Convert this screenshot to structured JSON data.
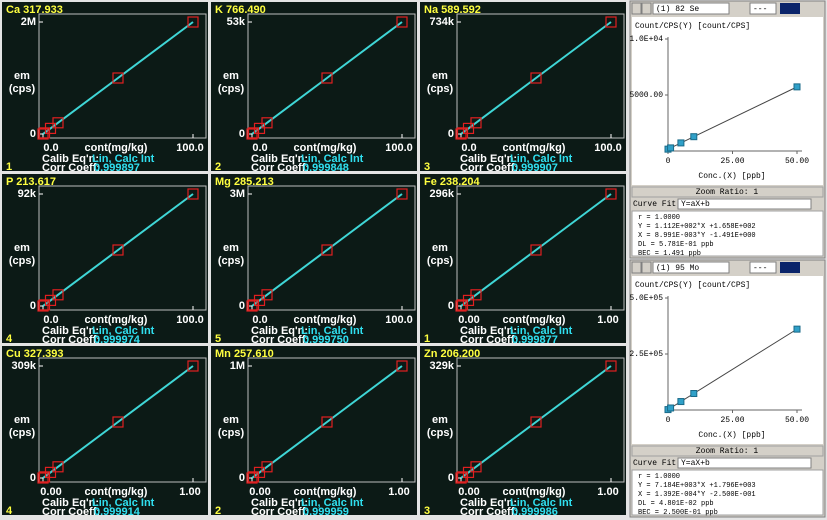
{
  "panels": [
    {
      "title": "Ca 317.933",
      "number": 1,
      "y_labels": [
        "em",
        "(cps)"
      ],
      "x_label": "cont(mg/kg)",
      "eqn_label": "Calib Eq'n:",
      "eqn": "Lin, Calc Int",
      "coeff_label": "Corr Coeff:",
      "coeff": "0.999897",
      "xlim": [
        0,
        100
      ],
      "xticks": [
        {
          "value": 0,
          "label": "0.0"
        },
        {
          "value": 100,
          "label": "100.0"
        }
      ],
      "ylim": [
        0,
        2000000
      ],
      "yticks": [
        0,
        {
          "value": 2000000,
          "label": "2M"
        }
      ],
      "x": [
        0,
        1,
        5,
        10,
        50,
        100
      ],
      "y": [
        0,
        20000,
        100000,
        200000,
        1000000,
        2000000
      ]
    },
    {
      "title": "K 766.490",
      "number": 2,
      "y_labels": [
        "em",
        "(cps)"
      ],
      "x_label": "cont(mg/kg)",
      "eqn_label": "Calib Eq'n:",
      "eqn": "Lin, Calc Int",
      "coeff_label": "Corr Coeff:",
      "coeff": "0.999848",
      "xlim": [
        0,
        100
      ],
      "xticks": [
        {
          "value": 0,
          "label": "0.0"
        },
        {
          "value": 100,
          "label": "100.0"
        }
      ],
      "ylim": [
        0,
        53000
      ],
      "yticks": [
        0,
        {
          "value": 53000,
          "label": "53k"
        }
      ],
      "x": [
        0,
        1,
        5,
        10,
        50,
        100
      ],
      "y": [
        0,
        530,
        2650,
        5300,
        26500,
        53000
      ]
    },
    {
      "title": "Na 589.592",
      "number": 3,
      "y_labels": [
        "em",
        "(cps)"
      ],
      "x_label": "cont(mg/kg)",
      "eqn_label": "Calib Eq'n:",
      "eqn": "Lin, Calc Int",
      "coeff_label": "Corr Coeff:",
      "coeff": "0.999907",
      "xlim": [
        0,
        100
      ],
      "xticks": [
        {
          "value": 0,
          "label": "0.0"
        },
        {
          "value": 100,
          "label": "100.0"
        }
      ],
      "ylim": [
        0,
        734000
      ],
      "yticks": [
        0,
        {
          "value": 734000,
          "label": "734k"
        }
      ],
      "x": [
        0,
        1,
        5,
        10,
        50,
        100
      ],
      "y": [
        0,
        7340,
        36700,
        73400,
        367000,
        734000
      ]
    },
    {
      "title": "P 213.617",
      "number": 4,
      "y_labels": [
        "em",
        "(cps)"
      ],
      "x_label": "cont(mg/kg)",
      "eqn_label": "Calib Eq'n:",
      "eqn": "Lin, Calc Int",
      "coeff_label": "Corr Coeff:",
      "coeff": "0.999974",
      "xlim": [
        0,
        100
      ],
      "xticks": [
        {
          "value": 0,
          "label": "0.0"
        },
        {
          "value": 100,
          "label": "100.0"
        }
      ],
      "ylim": [
        0,
        92000
      ],
      "yticks": [
        0,
        {
          "value": 92000,
          "label": "92k"
        }
      ],
      "x": [
        0,
        1,
        5,
        10,
        50,
        100
      ],
      "y": [
        0,
        920,
        4600,
        9200,
        46000,
        92000
      ]
    },
    {
      "title": "Mg 285.213",
      "number": 5,
      "y_labels": [
        "em",
        "(cps)"
      ],
      "x_label": "cont(mg/kg)",
      "eqn_label": "Calib Eq'n:",
      "eqn": "Lin, Calc Int",
      "coeff_label": "Corr Coeff:",
      "coeff": "0.999750",
      "xlim": [
        0,
        100
      ],
      "xticks": [
        {
          "value": 0,
          "label": "0.0"
        },
        {
          "value": 100,
          "label": "100.0"
        }
      ],
      "ylim": [
        0,
        3000000
      ],
      "yticks": [
        0,
        {
          "value": 3000000,
          "label": "3M"
        }
      ],
      "x": [
        0,
        1,
        5,
        10,
        50,
        100
      ],
      "y": [
        0,
        30000,
        150000,
        300000,
        1500000,
        3000000
      ]
    },
    {
      "title": "Fe 238.204",
      "number": 1,
      "y_labels": [
        "em",
        "(cps)"
      ],
      "x_label": "cont(mg/kg)",
      "eqn_label": "Calib Eq'n:",
      "eqn": "Lin, Calc Int",
      "coeff_label": "Corr Coeff:",
      "coeff": "0.999877",
      "xlim": [
        0,
        1
      ],
      "xticks": [
        {
          "value": 0,
          "label": "0.00"
        },
        {
          "value": 1,
          "label": "1.00"
        }
      ],
      "ylim": [
        0,
        296000
      ],
      "yticks": [
        0,
        {
          "value": 296000,
          "label": "296k"
        }
      ],
      "x": [
        0,
        0.01,
        0.05,
        0.1,
        0.5,
        1
      ],
      "y": [
        0,
        2960,
        14800,
        29600,
        148000,
        296000
      ]
    },
    {
      "title": "Cu 327.393",
      "number": 4,
      "y_labels": [
        "em",
        "(cps)"
      ],
      "x_label": "cont(mg/kg)",
      "eqn_label": "Calib Eq'n:",
      "eqn": "Lin, Calc Int",
      "coeff_label": "Corr Coeff:",
      "coeff": "0.999914",
      "xlim": [
        0,
        1
      ],
      "xticks": [
        {
          "value": 0,
          "label": "0.00"
        },
        {
          "value": 1,
          "label": "1.00"
        }
      ],
      "ylim": [
        0,
        309000
      ],
      "yticks": [
        0,
        {
          "value": 309000,
          "label": "309k"
        }
      ],
      "x": [
        0,
        0.01,
        0.05,
        0.1,
        0.5,
        1
      ],
      "y": [
        0,
        3090,
        15450,
        30900,
        154500,
        309000
      ]
    },
    {
      "title": "Mn 257.610",
      "number": 2,
      "y_labels": [
        "em",
        "(cps)"
      ],
      "x_label": "cont(mg/kg)",
      "eqn_label": "Calib Eq'n:",
      "eqn": "Lin, Calc Int",
      "coeff_label": "Corr Coeff:",
      "coeff": "0.999959",
      "xlim": [
        0,
        1
      ],
      "xticks": [
        {
          "value": 0,
          "label": "0.00"
        },
        {
          "value": 1,
          "label": "1.00"
        }
      ],
      "ylim": [
        0,
        1000000
      ],
      "yticks": [
        0,
        {
          "value": 1000000,
          "label": "1M"
        }
      ],
      "x": [
        0,
        0.01,
        0.05,
        0.1,
        0.5,
        1
      ],
      "y": [
        0,
        10000,
        50000,
        100000,
        500000,
        1000000
      ]
    },
    {
      "title": "Zn 206.200",
      "number": 3,
      "y_labels": [
        "em",
        "(cps)"
      ],
      "x_label": "cont(mg/kg)",
      "eqn_label": "Calib Eq'n:",
      "eqn": "Lin, Calc Int",
      "coeff_label": "Corr Coeff:",
      "coeff": "0.999986",
      "xlim": [
        0,
        1
      ],
      "xticks": [
        {
          "value": 0,
          "label": "0.00"
        },
        {
          "value": 1,
          "label": "1.00"
        }
      ],
      "ylim": [
        0,
        329000
      ],
      "yticks": [
        0,
        {
          "value": 329000,
          "label": "329k"
        }
      ],
      "x": [
        0,
        0.01,
        0.05,
        0.1,
        0.5,
        1
      ],
      "y": [
        0,
        3290,
        16450,
        32900,
        164500,
        329000
      ]
    }
  ],
  "side": [
    {
      "element": "(1)  82 Se",
      "mode": "---",
      "title": "Count/CPS(Y) [count/CPS]",
      "x_label": "Conc.(X) [ppb]",
      "zoom": "Zoom Ratio: 1",
      "fit_label": "Curve Fit:",
      "fit": "Y=aX+b",
      "stats": [
        "r = 1.0000",
        "Y = 1.112E+002*X +1.658E+002",
        "X = 8.991E-003*Y -1.491E+000",
        "DL = 5.781E-01 ppb",
        "BEC = 1.491 ppb"
      ],
      "xlim": [
        0,
        50
      ],
      "xticks": [
        0,
        {
          "value": 25,
          "label": "25.00"
        },
        {
          "value": 50,
          "label": "50.00"
        }
      ],
      "ylim": [
        0,
        10000
      ],
      "yticks": [
        {
          "value": 5000,
          "label": "5000.00"
        },
        {
          "value": 10000,
          "label": "1.0E+04"
        }
      ],
      "x": [
        0,
        1,
        5,
        10,
        50
      ],
      "y": [
        166,
        277,
        722,
        1278,
        5726
      ]
    },
    {
      "element": "(1)  95 Mo",
      "mode": "---",
      "title": "Count/CPS(Y) [count/CPS]",
      "x_label": "Conc.(X) [ppb]",
      "zoom": "Zoom Ratio: 1",
      "fit_label": "Curve Fit:",
      "fit": "Y=aX+b",
      "stats": [
        "r = 1.0000",
        "Y = 7.184E+003*X +1.796E+003",
        "X = 1.392E-004*Y -2.500E-001",
        "DL = 4.801E-02 ppb",
        "BEC = 2.500E-01 ppb"
      ],
      "xlim": [
        0,
        50
      ],
      "xticks": [
        0,
        {
          "value": 25,
          "label": "25.00"
        },
        {
          "value": 50,
          "label": "50.00"
        }
      ],
      "ylim": [
        0,
        500000
      ],
      "yticks": [
        {
          "value": 250000,
          "label": "2.5E+05"
        },
        {
          "value": 500000,
          "label": "5.0E+05"
        }
      ],
      "x": [
        0,
        1,
        5,
        10,
        50
      ],
      "y": [
        1796,
        8980,
        37716,
        73636,
        361000
      ]
    }
  ]
}
